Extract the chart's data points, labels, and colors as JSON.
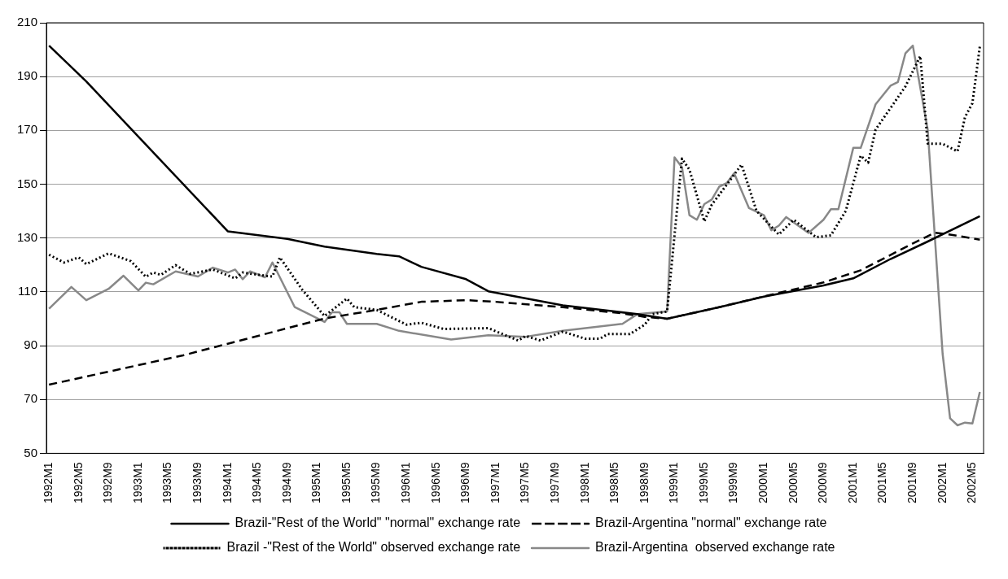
{
  "chart_data": {
    "type": "line",
    "grid": "y",
    "legend": "bottom",
    "marker": "none",
    "xlim": [
      "1992-01",
      "2002-06"
    ],
    "ylim": [
      50,
      210
    ],
    "yticks": [
      50,
      70,
      90,
      110,
      130,
      150,
      170,
      190,
      210
    ],
    "xticks": [
      {
        "value": "1992-01",
        "label": "1992M1"
      },
      {
        "value": "1992-05",
        "label": "1992M5"
      },
      {
        "value": "1992-09",
        "label": "1992M9"
      },
      {
        "value": "1993-01",
        "label": "1993M1"
      },
      {
        "value": "1993-05",
        "label": "1993M5"
      },
      {
        "value": "1993-09",
        "label": "1993M9"
      },
      {
        "value": "1994-01",
        "label": "1994M1"
      },
      {
        "value": "1994-05",
        "label": "1994M5"
      },
      {
        "value": "1994-09",
        "label": "1994M9"
      },
      {
        "value": "1995-01",
        "label": "1995M1"
      },
      {
        "value": "1995-05",
        "label": "1995M5"
      },
      {
        "value": "1995-09",
        "label": "1995M9"
      },
      {
        "value": "1996-01",
        "label": "1996M1"
      },
      {
        "value": "1996-05",
        "label": "1996M5"
      },
      {
        "value": "1996-09",
        "label": "1996M9"
      },
      {
        "value": "1997-01",
        "label": "1997M1"
      },
      {
        "value": "1997-05",
        "label": "1997M5"
      },
      {
        "value": "1997-09",
        "label": "1997M9"
      },
      {
        "value": "1998-01",
        "label": "1998M1"
      },
      {
        "value": "1998-05",
        "label": "1998M5"
      },
      {
        "value": "1998-09",
        "label": "1998M9"
      },
      {
        "value": "1999-01",
        "label": "1999M1"
      },
      {
        "value": "1999-05",
        "label": "1999M5"
      },
      {
        "value": "1999-09",
        "label": "1999M9"
      },
      {
        "value": "2000-01",
        "label": "2000M1"
      },
      {
        "value": "2000-05",
        "label": "2000M5"
      },
      {
        "value": "2000-09",
        "label": "2000M9"
      },
      {
        "value": "2001-01",
        "label": "2001M1"
      },
      {
        "value": "2001-05",
        "label": "2001M5"
      },
      {
        "value": "2001-09",
        "label": "2001M9"
      },
      {
        "value": "2002-01",
        "label": "2002M1"
      },
      {
        "value": "2002-05",
        "label": "2002M5"
      }
    ],
    "series": [
      {
        "name": "Brazil-\"Rest of the World\" \"normal\" exchange rate",
        "color": "#000000",
        "line_style": "solid",
        "x": [
          "1992-01",
          "1992-06",
          "1992-12",
          "1994-01",
          "1994-09",
          "1995-02",
          "1995-09",
          "1995-12",
          "1996-03",
          "1996-09",
          "1996-12",
          "1997-10",
          "1998-08",
          "1998-12",
          "1999-07",
          "2000-01",
          "2000-09",
          "2001-01",
          "2001-06",
          "2001-11",
          "2002-06"
        ],
        "values": [
          201.5,
          188.2,
          170.6,
          132.5,
          129.7,
          126.8,
          124.1,
          123.2,
          119.3,
          114.7,
          110.2,
          105,
          101.7,
          100,
          104.3,
          108.2,
          112.4,
          115,
          122.2,
          128.7,
          138.1
        ]
      },
      {
        "name": "Brazil-Argentina \"normal\" exchange rate",
        "color": "#000000",
        "line_style": "dashed",
        "x": [
          "1992-01",
          "1993-07",
          "1994-01",
          "1995-02",
          "1995-09",
          "1996-03",
          "1996-09",
          "1997-01",
          "1997-10",
          "1998-06",
          "1998-09",
          "1998-12",
          "1999-07",
          "2000-01",
          "2000-09",
          "2001-02",
          "2001-09",
          "2001-12",
          "2002-02",
          "2002-06"
        ],
        "values": [
          75.5,
          86.4,
          90.7,
          100.1,
          103.3,
          106.3,
          106.9,
          106.3,
          104.3,
          102,
          100.7,
          100,
          104.3,
          108.3,
          113.5,
          118,
          128,
          132,
          131.3,
          129.4
        ]
      },
      {
        "name": "Brazil -\"Rest of the World\" observed exchange rate",
        "color": "#000000",
        "line_style": "dotted",
        "x": [
          "1992-01",
          "1992-03",
          "1992-05",
          "1992-06",
          "1992-09",
          "1992-12",
          "1993-02",
          "1993-03",
          "1993-04",
          "1993-06",
          "1993-08",
          "1993-11",
          "1994-02",
          "1994-03",
          "1994-06",
          "1994-07",
          "1994-08",
          "1994-11",
          "1995-02",
          "1995-05",
          "1995-06",
          "1995-09",
          "1996-01",
          "1996-03",
          "1996-06",
          "1996-12",
          "1997-04",
          "1997-05",
          "1997-07",
          "1997-10",
          "1998-01",
          "1998-03",
          "1998-04",
          "1998-07",
          "1998-09",
          "1998-10",
          "1998-12",
          "1999-02",
          "1999-03",
          "1999-05",
          "1999-06",
          "1999-08",
          "1999-10",
          "1999-12",
          "2000-03",
          "2000-05",
          "2000-08",
          "2000-10",
          "2000-12",
          "2001-02",
          "2001-03",
          "2001-04",
          "2001-08",
          "2001-10",
          "2001-11",
          "2002-01",
          "2002-03",
          "2002-04",
          "2002-05",
          "2002-06"
        ],
        "values": [
          123.8,
          120.9,
          122.8,
          120.3,
          124.3,
          121.4,
          115.6,
          117.2,
          116.3,
          119.9,
          116.7,
          118.3,
          115,
          117.2,
          116,
          115.7,
          122.8,
          110.8,
          101,
          107.5,
          104.3,
          103.3,
          97.8,
          98.5,
          96.2,
          96.5,
          91.9,
          93.6,
          91.9,
          95.2,
          92.6,
          92.6,
          94.3,
          94.3,
          97.8,
          101.7,
          102.7,
          159.5,
          155.4,
          136.2,
          142.4,
          149.8,
          157.3,
          140.1,
          131.3,
          136.8,
          130.3,
          131,
          140.1,
          160.6,
          158,
          170.3,
          186.3,
          197.6,
          165.1,
          165,
          162.2,
          174.9,
          180.1,
          201.2
        ]
      },
      {
        "name": "Brazil-Argentina  observed exchange rate",
        "color": "#888888",
        "line_style": "solid",
        "x": [
          "1992-01",
          "1992-04",
          "1992-06",
          "1992-09",
          "1992-11",
          "1993-01",
          "1993-02",
          "1993-03",
          "1993-06",
          "1993-09",
          "1993-11",
          "1994-01",
          "1994-02",
          "1994-03",
          "1994-04",
          "1994-06",
          "1994-07",
          "1994-10",
          "1995-02",
          "1995-03",
          "1995-04",
          "1995-05",
          "1995-09",
          "1995-12",
          "1996-07",
          "1996-12",
          "1997-05",
          "1997-10",
          "1998-06",
          "1998-08",
          "1998-12",
          "1999-01",
          "1999-02",
          "1999-03",
          "1999-04",
          "1999-05",
          "1999-06",
          "1999-07",
          "1999-08",
          "1999-09",
          "1999-11",
          "2000-01",
          "2000-02",
          "2000-03",
          "2000-04",
          "2000-07",
          "2000-09",
          "2000-10",
          "2000-11",
          "2001-01",
          "2001-02",
          "2001-04",
          "2001-06",
          "2001-07",
          "2001-08",
          "2001-09",
          "2001-11",
          "2002-01",
          "2002-02",
          "2002-03",
          "2002-04",
          "2002-05",
          "2002-06"
        ],
        "values": [
          103.7,
          111.8,
          106.9,
          111.1,
          116,
          110.5,
          113.4,
          112.8,
          117.6,
          115.7,
          119,
          117.2,
          118.3,
          114.7,
          117.6,
          115.4,
          120.9,
          104.3,
          98.8,
          102.4,
          102.4,
          98.1,
          98.1,
          95.5,
          92.3,
          93.9,
          93.3,
          95.5,
          98.1,
          101.7,
          102.7,
          160,
          156.3,
          138.5,
          136.8,
          142.6,
          144.3,
          149.1,
          150.4,
          154.1,
          141.1,
          138.5,
          132.9,
          134.6,
          137.8,
          131.9,
          136.8,
          140.7,
          140.7,
          163.5,
          163.5,
          179.7,
          186.6,
          188,
          198.6,
          201.5,
          170.3,
          87,
          63,
          60.4,
          61.4,
          61.1,
          72.8
        ]
      }
    ]
  }
}
